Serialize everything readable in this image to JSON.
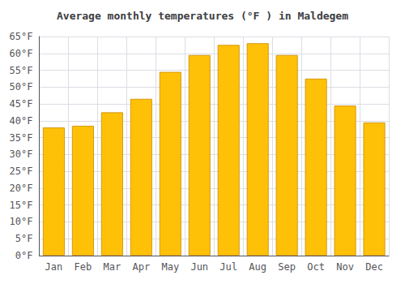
{
  "chart_data": {
    "type": "bar",
    "title": "Average monthly temperatures (°F ) in Maldegem",
    "categories": [
      "Jan",
      "Feb",
      "Mar",
      "Apr",
      "May",
      "Jun",
      "Jul",
      "Aug",
      "Sep",
      "Oct",
      "Nov",
      "Dec"
    ],
    "values": [
      38,
      38.5,
      42.5,
      46.5,
      54.5,
      59.5,
      62.5,
      63,
      59.5,
      52.5,
      44.5,
      39.5
    ],
    "color": "#FFC107",
    "ylim": [
      0,
      65
    ],
    "yticks": [
      {
        "value": 0,
        "label": "0°F"
      },
      {
        "value": 5,
        "label": "5°F"
      },
      {
        "value": 10,
        "label": "10°F"
      },
      {
        "value": 15,
        "label": "15°F"
      },
      {
        "value": 20,
        "label": "20°F"
      },
      {
        "value": 25,
        "label": "25°F"
      },
      {
        "value": 30,
        "label": "30°F"
      },
      {
        "value": 35,
        "label": "35°F"
      },
      {
        "value": 40,
        "label": "40°F"
      },
      {
        "value": 45,
        "label": "45°F"
      },
      {
        "value": 50,
        "label": "50°F"
      },
      {
        "value": 55,
        "label": "55°F"
      },
      {
        "value": 60,
        "label": "60°F"
      },
      {
        "value": 65,
        "label": "65°F"
      }
    ],
    "grid": true
  }
}
